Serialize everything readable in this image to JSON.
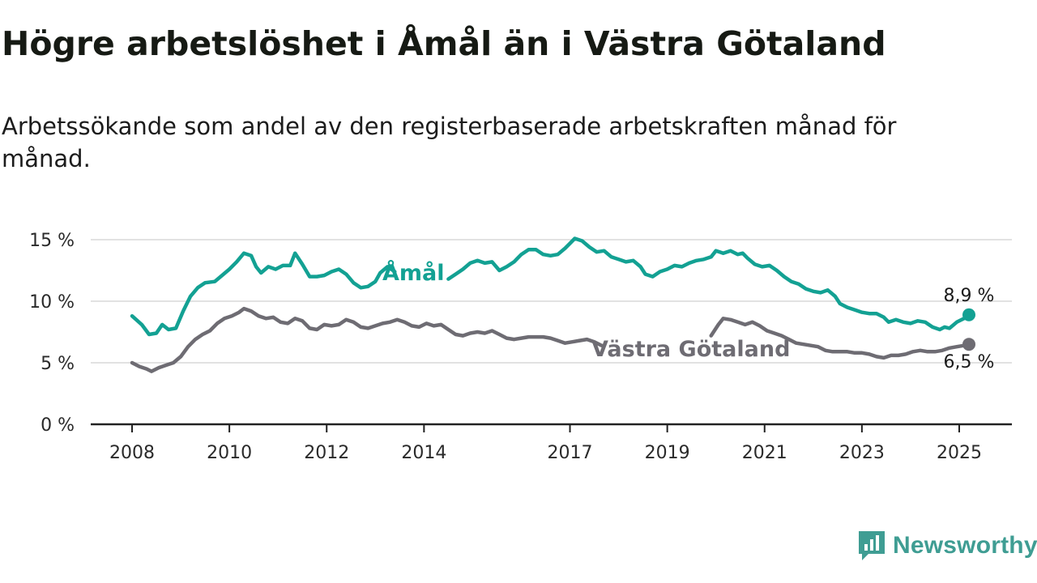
{
  "title": "Högre arbetslöshet i Åmål än i Västra Götaland",
  "subtitle": "Arbetssökande som andel av den registerbaserade arbetskraften månad för månad.",
  "brand": {
    "name": "Newsworthy",
    "color": "#3f9d93"
  },
  "chart_data": {
    "type": "line",
    "x_domain": [
      2008.0,
      2025.2
    ],
    "ylim": [
      0,
      15
    ],
    "y_ticks": [
      {
        "value": 0,
        "label": "0 %"
      },
      {
        "value": 5,
        "label": "5 %"
      },
      {
        "value": 10,
        "label": "10 %"
      },
      {
        "value": 15,
        "label": "15 %"
      }
    ],
    "x_ticks": [
      {
        "value": 2008,
        "label": "2008"
      },
      {
        "value": 2010,
        "label": "2010"
      },
      {
        "value": 2012,
        "label": "2012"
      },
      {
        "value": 2014,
        "label": "2014"
      },
      {
        "value": 2017,
        "label": "2017"
      },
      {
        "value": 2019,
        "label": "2019"
      },
      {
        "value": 2021,
        "label": "2021"
      },
      {
        "value": 2023,
        "label": "2023"
      },
      {
        "value": 2025,
        "label": "2025"
      }
    ],
    "grid": true,
    "series": [
      {
        "name": "Åmål",
        "color": "#13a193",
        "end_label": "8,9 %",
        "segments": [
          [
            [
              2008.0,
              8.8
            ],
            [
              2008.2,
              8.1
            ],
            [
              2008.35,
              7.3
            ],
            [
              2008.5,
              7.4
            ],
            [
              2008.62,
              8.1
            ],
            [
              2008.75,
              7.7
            ],
            [
              2008.9,
              7.8
            ],
            [
              2009.05,
              9.2
            ],
            [
              2009.2,
              10.4
            ],
            [
              2009.35,
              11.1
            ],
            [
              2009.5,
              11.5
            ],
            [
              2009.7,
              11.6
            ],
            [
              2009.85,
              12.1
            ],
            [
              2010.0,
              12.6
            ],
            [
              2010.15,
              13.2
            ],
            [
              2010.3,
              13.9
            ],
            [
              2010.45,
              13.7
            ],
            [
              2010.55,
              12.8
            ],
            [
              2010.65,
              12.3
            ],
            [
              2010.8,
              12.8
            ],
            [
              2010.95,
              12.6
            ],
            [
              2011.1,
              12.9
            ],
            [
              2011.25,
              12.9
            ],
            [
              2011.35,
              13.9
            ],
            [
              2011.5,
              13.0
            ],
            [
              2011.65,
              12.0
            ],
            [
              2011.8,
              12.0
            ],
            [
              2011.95,
              12.1
            ],
            [
              2012.1,
              12.4
            ],
            [
              2012.25,
              12.6
            ],
            [
              2012.4,
              12.2
            ],
            [
              2012.55,
              11.5
            ],
            [
              2012.7,
              11.1
            ],
            [
              2012.85,
              11.2
            ],
            [
              2013.0,
              11.6
            ],
            [
              2013.1,
              12.3
            ],
            [
              2013.25,
              12.8
            ],
            [
              2013.4,
              12.4
            ]
          ],
          [
            [
              2014.5,
              11.8
            ],
            [
              2014.65,
              12.2
            ],
            [
              2014.8,
              12.6
            ],
            [
              2014.95,
              13.1
            ],
            [
              2015.1,
              13.3
            ],
            [
              2015.25,
              13.1
            ],
            [
              2015.4,
              13.2
            ],
            [
              2015.55,
              12.5
            ],
            [
              2015.7,
              12.8
            ],
            [
              2015.85,
              13.2
            ],
            [
              2016.0,
              13.8
            ],
            [
              2016.15,
              14.2
            ],
            [
              2016.3,
              14.2
            ],
            [
              2016.45,
              13.8
            ],
            [
              2016.6,
              13.7
            ],
            [
              2016.75,
              13.8
            ],
            [
              2016.9,
              14.3
            ],
            [
              2017.0,
              14.7
            ],
            [
              2017.1,
              15.1
            ],
            [
              2017.25,
              14.9
            ],
            [
              2017.4,
              14.4
            ],
            [
              2017.55,
              14.0
            ],
            [
              2017.7,
              14.1
            ],
            [
              2017.85,
              13.6
            ],
            [
              2018.0,
              13.4
            ],
            [
              2018.15,
              13.2
            ],
            [
              2018.3,
              13.3
            ],
            [
              2018.45,
              12.8
            ],
            [
              2018.55,
              12.2
            ],
            [
              2018.7,
              12.0
            ],
            [
              2018.85,
              12.4
            ],
            [
              2019.0,
              12.6
            ],
            [
              2019.15,
              12.9
            ],
            [
              2019.3,
              12.8
            ],
            [
              2019.45,
              13.1
            ],
            [
              2019.6,
              13.3
            ],
            [
              2019.75,
              13.4
            ],
            [
              2019.9,
              13.6
            ],
            [
              2020.0,
              14.1
            ],
            [
              2020.15,
              13.9
            ],
            [
              2020.3,
              14.1
            ],
            [
              2020.45,
              13.8
            ],
            [
              2020.55,
              13.9
            ],
            [
              2020.65,
              13.5
            ],
            [
              2020.8,
              13.0
            ],
            [
              2020.95,
              12.8
            ],
            [
              2021.1,
              12.9
            ],
            [
              2021.25,
              12.5
            ],
            [
              2021.4,
              12.0
            ],
            [
              2021.55,
              11.6
            ],
            [
              2021.7,
              11.4
            ],
            [
              2021.85,
              11.0
            ],
            [
              2022.0,
              10.8
            ],
            [
              2022.15,
              10.7
            ],
            [
              2022.3,
              10.9
            ],
            [
              2022.45,
              10.4
            ],
            [
              2022.55,
              9.8
            ],
            [
              2022.7,
              9.5
            ],
            [
              2022.85,
              9.3
            ],
            [
              2023.0,
              9.1
            ],
            [
              2023.15,
              9.0
            ],
            [
              2023.3,
              9.0
            ],
            [
              2023.45,
              8.7
            ],
            [
              2023.55,
              8.3
            ],
            [
              2023.7,
              8.5
            ],
            [
              2023.85,
              8.3
            ],
            [
              2024.0,
              8.2
            ],
            [
              2024.15,
              8.4
            ],
            [
              2024.3,
              8.3
            ],
            [
              2024.45,
              7.9
            ],
            [
              2024.6,
              7.7
            ],
            [
              2024.7,
              7.9
            ],
            [
              2024.8,
              7.8
            ],
            [
              2024.95,
              8.3
            ],
            [
              2025.1,
              8.6
            ],
            [
              2025.2,
              8.9
            ]
          ]
        ]
      },
      {
        "name": "Västra Götaland",
        "color": "#6e6c73",
        "end_label": "6,5 %",
        "segments": [
          [
            [
              2008.0,
              5.0
            ],
            [
              2008.15,
              4.7
            ],
            [
              2008.3,
              4.5
            ],
            [
              2008.4,
              4.3
            ],
            [
              2008.55,
              4.6
            ],
            [
              2008.7,
              4.8
            ],
            [
              2008.85,
              5.0
            ],
            [
              2009.0,
              5.5
            ],
            [
              2009.15,
              6.3
            ],
            [
              2009.3,
              6.9
            ],
            [
              2009.45,
              7.3
            ],
            [
              2009.6,
              7.6
            ],
            [
              2009.75,
              8.2
            ],
            [
              2009.9,
              8.6
            ],
            [
              2010.05,
              8.8
            ],
            [
              2010.2,
              9.1
            ],
            [
              2010.3,
              9.4
            ],
            [
              2010.45,
              9.2
            ],
            [
              2010.6,
              8.8
            ],
            [
              2010.75,
              8.6
            ],
            [
              2010.9,
              8.7
            ],
            [
              2011.05,
              8.3
            ],
            [
              2011.2,
              8.2
            ],
            [
              2011.35,
              8.6
            ],
            [
              2011.5,
              8.4
            ],
            [
              2011.65,
              7.8
            ],
            [
              2011.8,
              7.7
            ],
            [
              2011.95,
              8.1
            ],
            [
              2012.1,
              8.0
            ],
            [
              2012.25,
              8.1
            ],
            [
              2012.4,
              8.5
            ],
            [
              2012.55,
              8.3
            ],
            [
              2012.7,
              7.9
            ],
            [
              2012.85,
              7.8
            ],
            [
              2013.0,
              8.0
            ],
            [
              2013.15,
              8.2
            ],
            [
              2013.3,
              8.3
            ],
            [
              2013.45,
              8.5
            ],
            [
              2013.6,
              8.3
            ],
            [
              2013.75,
              8.0
            ],
            [
              2013.9,
              7.9
            ],
            [
              2014.05,
              8.2
            ],
            [
              2014.2,
              8.0
            ],
            [
              2014.35,
              8.1
            ],
            [
              2014.5,
              7.7
            ],
            [
              2014.65,
              7.3
            ],
            [
              2014.8,
              7.2
            ],
            [
              2014.95,
              7.4
            ],
            [
              2015.1,
              7.5
            ],
            [
              2015.25,
              7.4
            ],
            [
              2015.4,
              7.6
            ],
            [
              2015.55,
              7.3
            ],
            [
              2015.7,
              7.0
            ],
            [
              2015.85,
              6.9
            ],
            [
              2016.0,
              7.0
            ],
            [
              2016.15,
              7.1
            ],
            [
              2016.3,
              7.1
            ],
            [
              2016.45,
              7.1
            ],
            [
              2016.6,
              7.0
            ],
            [
              2016.75,
              6.8
            ],
            [
              2016.9,
              6.6
            ],
            [
              2017.05,
              6.7
            ],
            [
              2017.2,
              6.8
            ],
            [
              2017.35,
              6.9
            ],
            [
              2017.5,
              6.7
            ],
            [
              2017.65,
              6.4
            ]
          ],
          [
            [
              2019.9,
              7.2
            ],
            [
              2020.05,
              8.1
            ],
            [
              2020.15,
              8.6
            ],
            [
              2020.3,
              8.5
            ],
            [
              2020.45,
              8.3
            ],
            [
              2020.6,
              8.1
            ],
            [
              2020.75,
              8.3
            ],
            [
              2020.9,
              8.0
            ],
            [
              2021.05,
              7.6
            ],
            [
              2021.2,
              7.4
            ],
            [
              2021.35,
              7.2
            ],
            [
              2021.5,
              6.9
            ],
            [
              2021.65,
              6.6
            ],
            [
              2021.8,
              6.5
            ],
            [
              2021.95,
              6.4
            ],
            [
              2022.1,
              6.3
            ],
            [
              2022.25,
              6.0
            ],
            [
              2022.4,
              5.9
            ],
            [
              2022.55,
              5.9
            ],
            [
              2022.7,
              5.9
            ],
            [
              2022.85,
              5.8
            ],
            [
              2023.0,
              5.8
            ],
            [
              2023.15,
              5.7
            ],
            [
              2023.3,
              5.5
            ],
            [
              2023.45,
              5.4
            ],
            [
              2023.6,
              5.6
            ],
            [
              2023.75,
              5.6
            ],
            [
              2023.9,
              5.7
            ],
            [
              2024.05,
              5.9
            ],
            [
              2024.2,
              6.0
            ],
            [
              2024.35,
              5.9
            ],
            [
              2024.5,
              5.9
            ],
            [
              2024.65,
              6.0
            ],
            [
              2024.8,
              6.2
            ],
            [
              2024.95,
              6.3
            ],
            [
              2025.1,
              6.4
            ],
            [
              2025.2,
              6.5
            ]
          ]
        ]
      }
    ]
  }
}
